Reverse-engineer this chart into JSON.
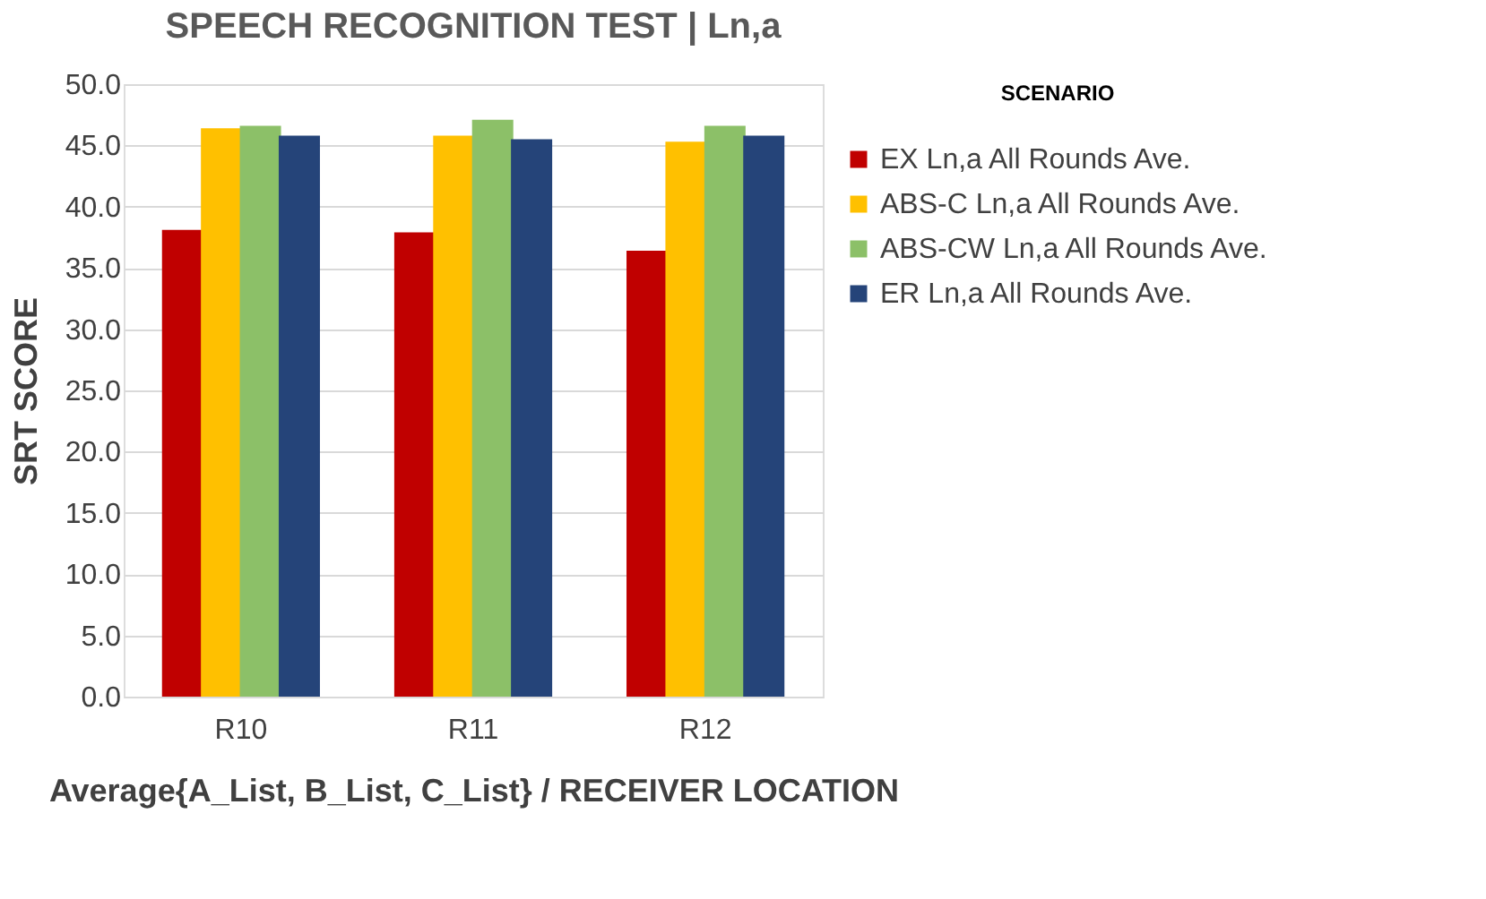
{
  "chart_data": {
    "type": "bar",
    "title": "SPEECH RECOGNITION TEST | Ln,a",
    "xlabel": "Average{A_List, B_List, C_List} / RECEIVER LOCATION",
    "ylabel": "SRT SCORE",
    "legend_title": "SCENARIO",
    "categories": [
      "R10",
      "R11",
      "R12"
    ],
    "series": [
      {
        "name": "EX Ln,a All Rounds Ave.",
        "color": "#c00000",
        "values": [
          38.1,
          37.9,
          36.4
        ]
      },
      {
        "name": "ABS-C Ln,a All Rounds Ave.",
        "color": "#ffc000",
        "values": [
          46.4,
          45.8,
          45.3
        ]
      },
      {
        "name": "ABS-CW Ln,a All Rounds Ave.",
        "color": "#8cc068",
        "values": [
          46.6,
          47.1,
          46.6
        ]
      },
      {
        "name": "ER Ln,a All Rounds Ave.",
        "color": "#254479",
        "values": [
          45.8,
          45.5,
          45.8
        ]
      }
    ],
    "ylim": [
      0,
      50
    ],
    "yticks": [
      {
        "value": 0,
        "label": "0.0"
      },
      {
        "value": 5,
        "label": "5.0"
      },
      {
        "value": 10,
        "label": "10.0"
      },
      {
        "value": 15,
        "label": "15.0"
      },
      {
        "value": 20,
        "label": "20.0"
      },
      {
        "value": 25,
        "label": "25.0"
      },
      {
        "value": 30,
        "label": "30.0"
      },
      {
        "value": 35,
        "label": "35.0"
      },
      {
        "value": 40,
        "label": "40.0"
      },
      {
        "value": 45,
        "label": "45.0"
      },
      {
        "value": 50,
        "label": "50.0"
      }
    ],
    "grid": "y",
    "legend": "right"
  }
}
